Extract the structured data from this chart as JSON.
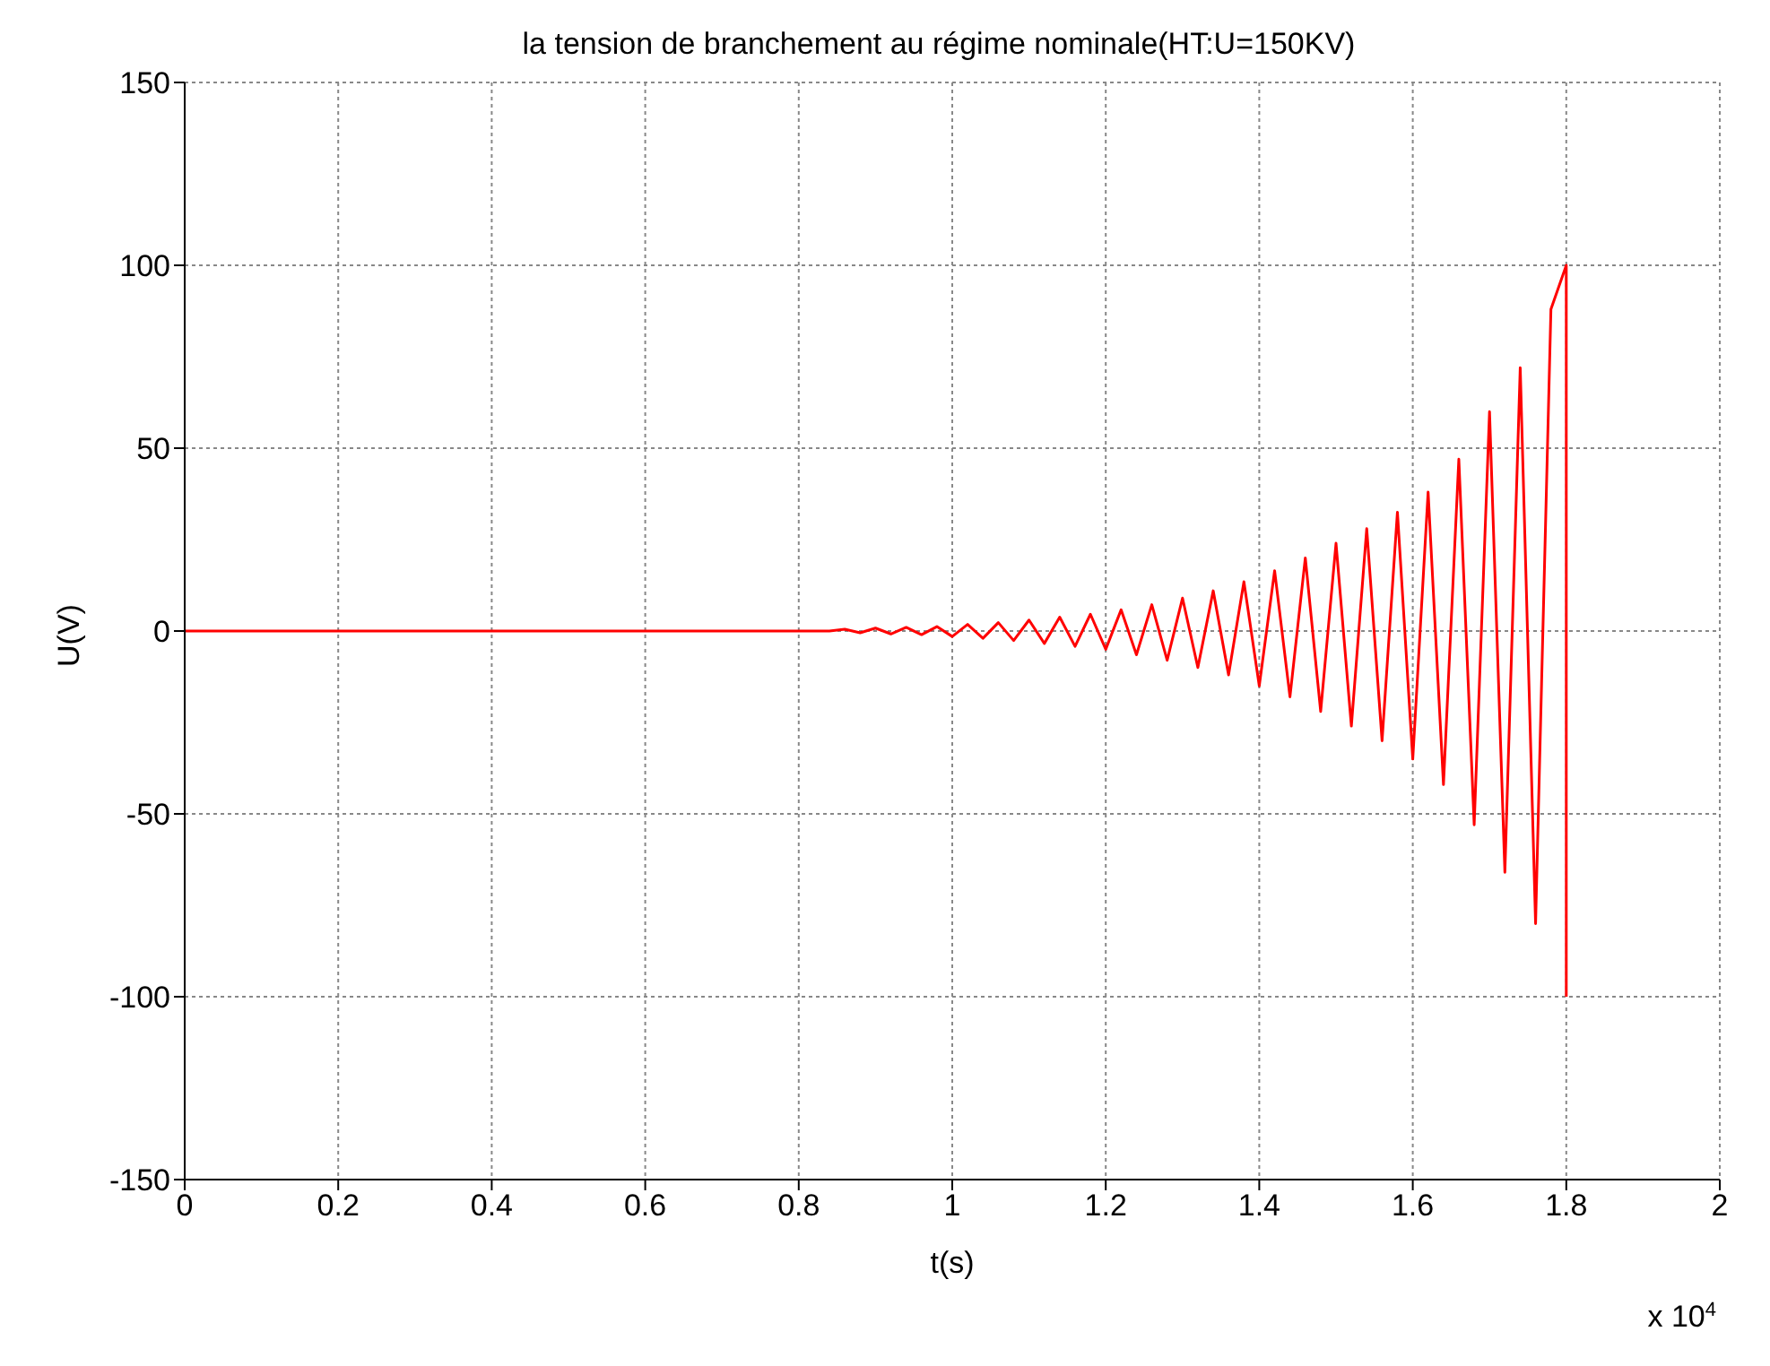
{
  "chart_data": {
    "type": "line",
    "title": "la tension de branchement au régime nominale(HT:U=150KV)",
    "xlabel": "t(s)",
    "ylabel": "U(V)",
    "annotations": [
      "x 10$^{4}$"
    ],
    "x": [
      0,
      0.2,
      0.4,
      0.6,
      0.84,
      0.86,
      0.88,
      0.9,
      0.92,
      0.94,
      0.96,
      0.98,
      1.0,
      1.02,
      1.04,
      1.06,
      1.08,
      1.1,
      1.12,
      1.14,
      1.16,
      1.18,
      1.2,
      1.22,
      1.24,
      1.26,
      1.28,
      1.3,
      1.32,
      1.34,
      1.36,
      1.38,
      1.4,
      1.42,
      1.44,
      1.46,
      1.48,
      1.5,
      1.52,
      1.54,
      1.56,
      1.58,
      1.6,
      1.62,
      1.64,
      1.66,
      1.68,
      1.7,
      1.72,
      1.74,
      1.76,
      1.78,
      1.8,
      1.8
    ],
    "series": [
      {
        "color": "#ff0000",
        "values": [
          0,
          0,
          0,
          0,
          0,
          0.5,
          -0.5,
          0.8,
          -0.8,
          1,
          -1,
          1.2,
          -1.5,
          1.8,
          -2,
          2.3,
          -2.6,
          3,
          -3.4,
          3.8,
          -4.2,
          4.6,
          -5,
          5.8,
          -6.5,
          7.2,
          -8,
          9,
          -10,
          11,
          -12,
          13.5,
          -15,
          16.5,
          -18,
          20,
          -22,
          24,
          -26,
          28,
          -30,
          32.5,
          -35,
          38,
          -42,
          47,
          -53,
          60,
          -66,
          72,
          -80,
          88,
          100,
          -100
        ]
      }
    ],
    "xlim": [
      0,
      2
    ],
    "xticks": [
      0,
      0.2,
      0.4,
      0.6,
      0.8,
      1,
      1.2,
      1.4,
      1.6,
      1.8,
      2
    ],
    "ylim": [
      -150,
      150
    ],
    "yticks": [
      -150,
      -100,
      -50,
      0,
      50,
      100,
      150
    ],
    "grid": true,
    "legend": false,
    "marker": "none",
    "line_style": "solid"
  }
}
